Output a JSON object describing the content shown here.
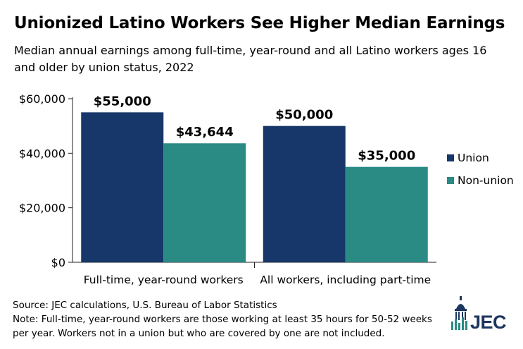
{
  "header": {
    "title": "Unionized Latino Workers See Higher Median Earnings",
    "subtitle": "Median annual earnings among full-time, year-round and all Latino workers ages 16 and older by union status, 2022"
  },
  "chart_data": {
    "type": "bar",
    "categories": [
      "Full-time, year-round workers",
      "All workers, including part-time"
    ],
    "series": [
      {
        "name": "Union",
        "values": [
          55000,
          50000
        ],
        "labels": [
          "$55,000",
          "$50,000"
        ],
        "color": "#17376a"
      },
      {
        "name": "Non-union",
        "values": [
          43644,
          35000
        ],
        "labels": [
          "$43,644",
          "$35,000"
        ],
        "color": "#2a8a84"
      }
    ],
    "ylim": [
      0,
      60000
    ],
    "yticks": [
      {
        "value": 0,
        "label": "$0"
      },
      {
        "value": 20000,
        "label": "$20,000"
      },
      {
        "value": 40000,
        "label": "$40,000"
      },
      {
        "value": 60000,
        "label": "$60,000"
      }
    ],
    "legend_position": "right",
    "grid": false
  },
  "footer": {
    "source": "Source: JEC calculations, U.S. Bureau of Labor Statistics",
    "note": "Note: Full-time, year-round workers are those working at least 35 hours for 50-52 weeks per year. Workers not in a union but who are covered by one are not included."
  },
  "logo": {
    "text": "JEC",
    "icon": "capitol-dome-icon"
  }
}
